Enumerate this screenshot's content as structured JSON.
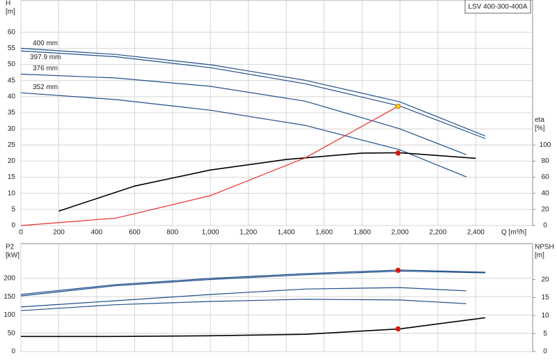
{
  "chart_data": [
    {
      "type": "line",
      "title": "LSV 400-300-400A",
      "ylabel": [
        "H",
        "[m]"
      ],
      "y2label": [
        "eta",
        "[%]"
      ],
      "xlabel": "Q [m³/h]",
      "xlim": [
        0,
        2700
      ],
      "ylim": [
        0,
        70
      ],
      "y2lim": [
        0,
        280
      ],
      "xticks": [
        0,
        200,
        400,
        600,
        800,
        {
          "value": 1000,
          "label": "1,000"
        },
        {
          "value": 1200,
          "label": "1,200"
        },
        {
          "value": 1400,
          "label": "1,400"
        },
        {
          "value": 1600,
          "label": "1,600"
        },
        {
          "value": 1800,
          "label": "1,800"
        },
        {
          "value": 2000,
          "label": "2,000"
        },
        {
          "value": 2200,
          "label": "2,200"
        },
        {
          "value": 2400,
          "label": "2,400"
        }
      ],
      "yticks": [
        0,
        5,
        10,
        15,
        20,
        25,
        30,
        35,
        40,
        45,
        50,
        55,
        60
      ],
      "y2ticks": [
        0,
        20,
        40,
        60,
        80,
        100
      ],
      "grid": true,
      "series": [
        {
          "name": "400 mm",
          "color": "#1f4e8c",
          "x": [
            0,
            500,
            1000,
            1500,
            2000,
            2450
          ],
          "values": [
            55,
            53.1,
            49.9,
            45.1,
            38.4,
            27.8
          ]
        },
        {
          "name": "397.9 mm",
          "color": "#1f4e8c",
          "x": [
            0,
            500,
            1000,
            1500,
            2000,
            2450
          ],
          "values": [
            54.2,
            52.4,
            49,
            44,
            37.1,
            27
          ]
        },
        {
          "name": "376 mm",
          "color": "#1f4e8c",
          "x": [
            0,
            500,
            1000,
            1500,
            2000,
            2350
          ],
          "values": [
            47,
            45.8,
            43.2,
            38.6,
            30,
            22
          ]
        },
        {
          "name": "352 mm",
          "color": "#1f4e8c",
          "x": [
            0,
            500,
            1000,
            1500,
            2000,
            2350
          ],
          "values": [
            41.2,
            39.1,
            35.8,
            31.1,
            23.5,
            15.1
          ]
        },
        {
          "color": "#000000",
          "axis": "y2",
          "x": [
            200,
            600,
            1000,
            1400,
            1800,
            2000,
            2400
          ],
          "values": [
            18,
            49,
            69,
            82,
            90,
            90.4,
            83.5
          ]
        },
        {
          "color": "#e83030",
          "x": [
            0,
            500,
            1000,
            1500,
            1990
          ],
          "values": [
            0,
            2.3,
            9.3,
            21,
            37
          ]
        }
      ],
      "points": [
        {
          "x": 1990,
          "y": 37,
          "color": "#f5c518"
        },
        {
          "x": 1990,
          "y": 90,
          "axis": "y2",
          "color": "#e01010"
        }
      ]
    },
    {
      "type": "line",
      "ylabel": [
        "P2",
        "[kW]"
      ],
      "y2label": [
        "NPSH",
        "[m]"
      ],
      "xlim": [
        0,
        2700
      ],
      "ylim": [
        0,
        295
      ],
      "y2lim": [
        0,
        30
      ],
      "xticks": [
        0,
        200,
        400,
        600,
        800,
        1000,
        1200,
        1400,
        1600,
        1800,
        2000,
        2200,
        2400
      ],
      "yticks": [
        0,
        50,
        100,
        150,
        200
      ],
      "y2ticks": [
        0,
        5,
        10,
        15,
        20
      ],
      "grid": true,
      "series": [
        {
          "color": "#1f4e8c",
          "x": [
            0,
            500,
            1000,
            1500,
            2000,
            2450
          ],
          "values": [
            156,
            183,
            200,
            213,
            223,
            217
          ]
        },
        {
          "color": "#1f4e8c",
          "x": [
            0,
            500,
            1000,
            1500,
            2000,
            2450
          ],
          "values": [
            152,
            180,
            197,
            210,
            220,
            215
          ]
        },
        {
          "color": "#1f4e8c",
          "x": [
            0,
            500,
            1000,
            1500,
            2000,
            2350
          ],
          "values": [
            122,
            139,
            156,
            171,
            175,
            166
          ]
        },
        {
          "color": "#1f4e8c",
          "x": [
            0,
            500,
            1000,
            1500,
            2000,
            2350
          ],
          "values": [
            112,
            128,
            137,
            143,
            141,
            131
          ]
        },
        {
          "color": "#000000",
          "axis": "y2",
          "x": [
            0,
            500,
            1000,
            1500,
            2000,
            2450
          ],
          "values": [
            4.2,
            4.2,
            4.4,
            4.8,
            6.3,
            9.4
          ]
        }
      ],
      "points": [
        {
          "x": 1990,
          "y": 222,
          "color": "#e01010"
        },
        {
          "x": 1990,
          "y": 6.3,
          "axis": "y2",
          "color": "#e01010"
        }
      ]
    }
  ]
}
